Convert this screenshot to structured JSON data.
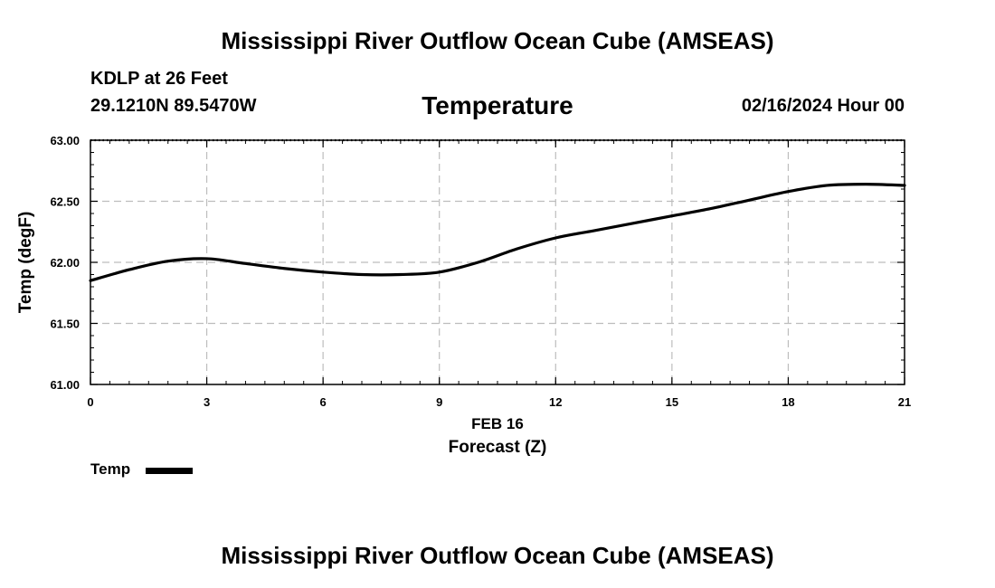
{
  "chart_data": {
    "type": "line",
    "title": "Mississippi River Outflow Ocean Cube (AMSEAS)",
    "footer_title": "Mississippi River Outflow Ocean Cube (AMSEAS)",
    "station": "KDLP at 26 Feet",
    "coordinates": "29.1210N  89.5470W",
    "parameter": "Temperature",
    "datetime": "02/16/2024 Hour 00",
    "xlabel_date": "FEB 16",
    "xlabel": "Forecast (Z)",
    "ylabel": "Temp (degF)",
    "xlim": [
      0,
      21
    ],
    "ylim": [
      61.0,
      63.0
    ],
    "x_ticks": [
      "0",
      "3",
      "6",
      "9",
      "12",
      "15",
      "18",
      "21"
    ],
    "y_ticks": [
      "61.00",
      "61.50",
      "62.00",
      "62.50",
      "63.00"
    ],
    "grid": true,
    "legend": "bottom-left",
    "series": [
      {
        "name": "Temp",
        "x": [
          0,
          1,
          2,
          3,
          4,
          5,
          6,
          7,
          8,
          9,
          10,
          11,
          12,
          13,
          14,
          15,
          16,
          17,
          18,
          19,
          20,
          21
        ],
        "values": [
          61.85,
          61.94,
          62.01,
          62.03,
          61.99,
          61.95,
          61.92,
          61.9,
          61.9,
          61.92,
          62.0,
          62.11,
          62.2,
          62.26,
          62.32,
          62.38,
          62.44,
          62.51,
          62.58,
          62.63,
          62.64,
          62.63
        ]
      }
    ]
  }
}
